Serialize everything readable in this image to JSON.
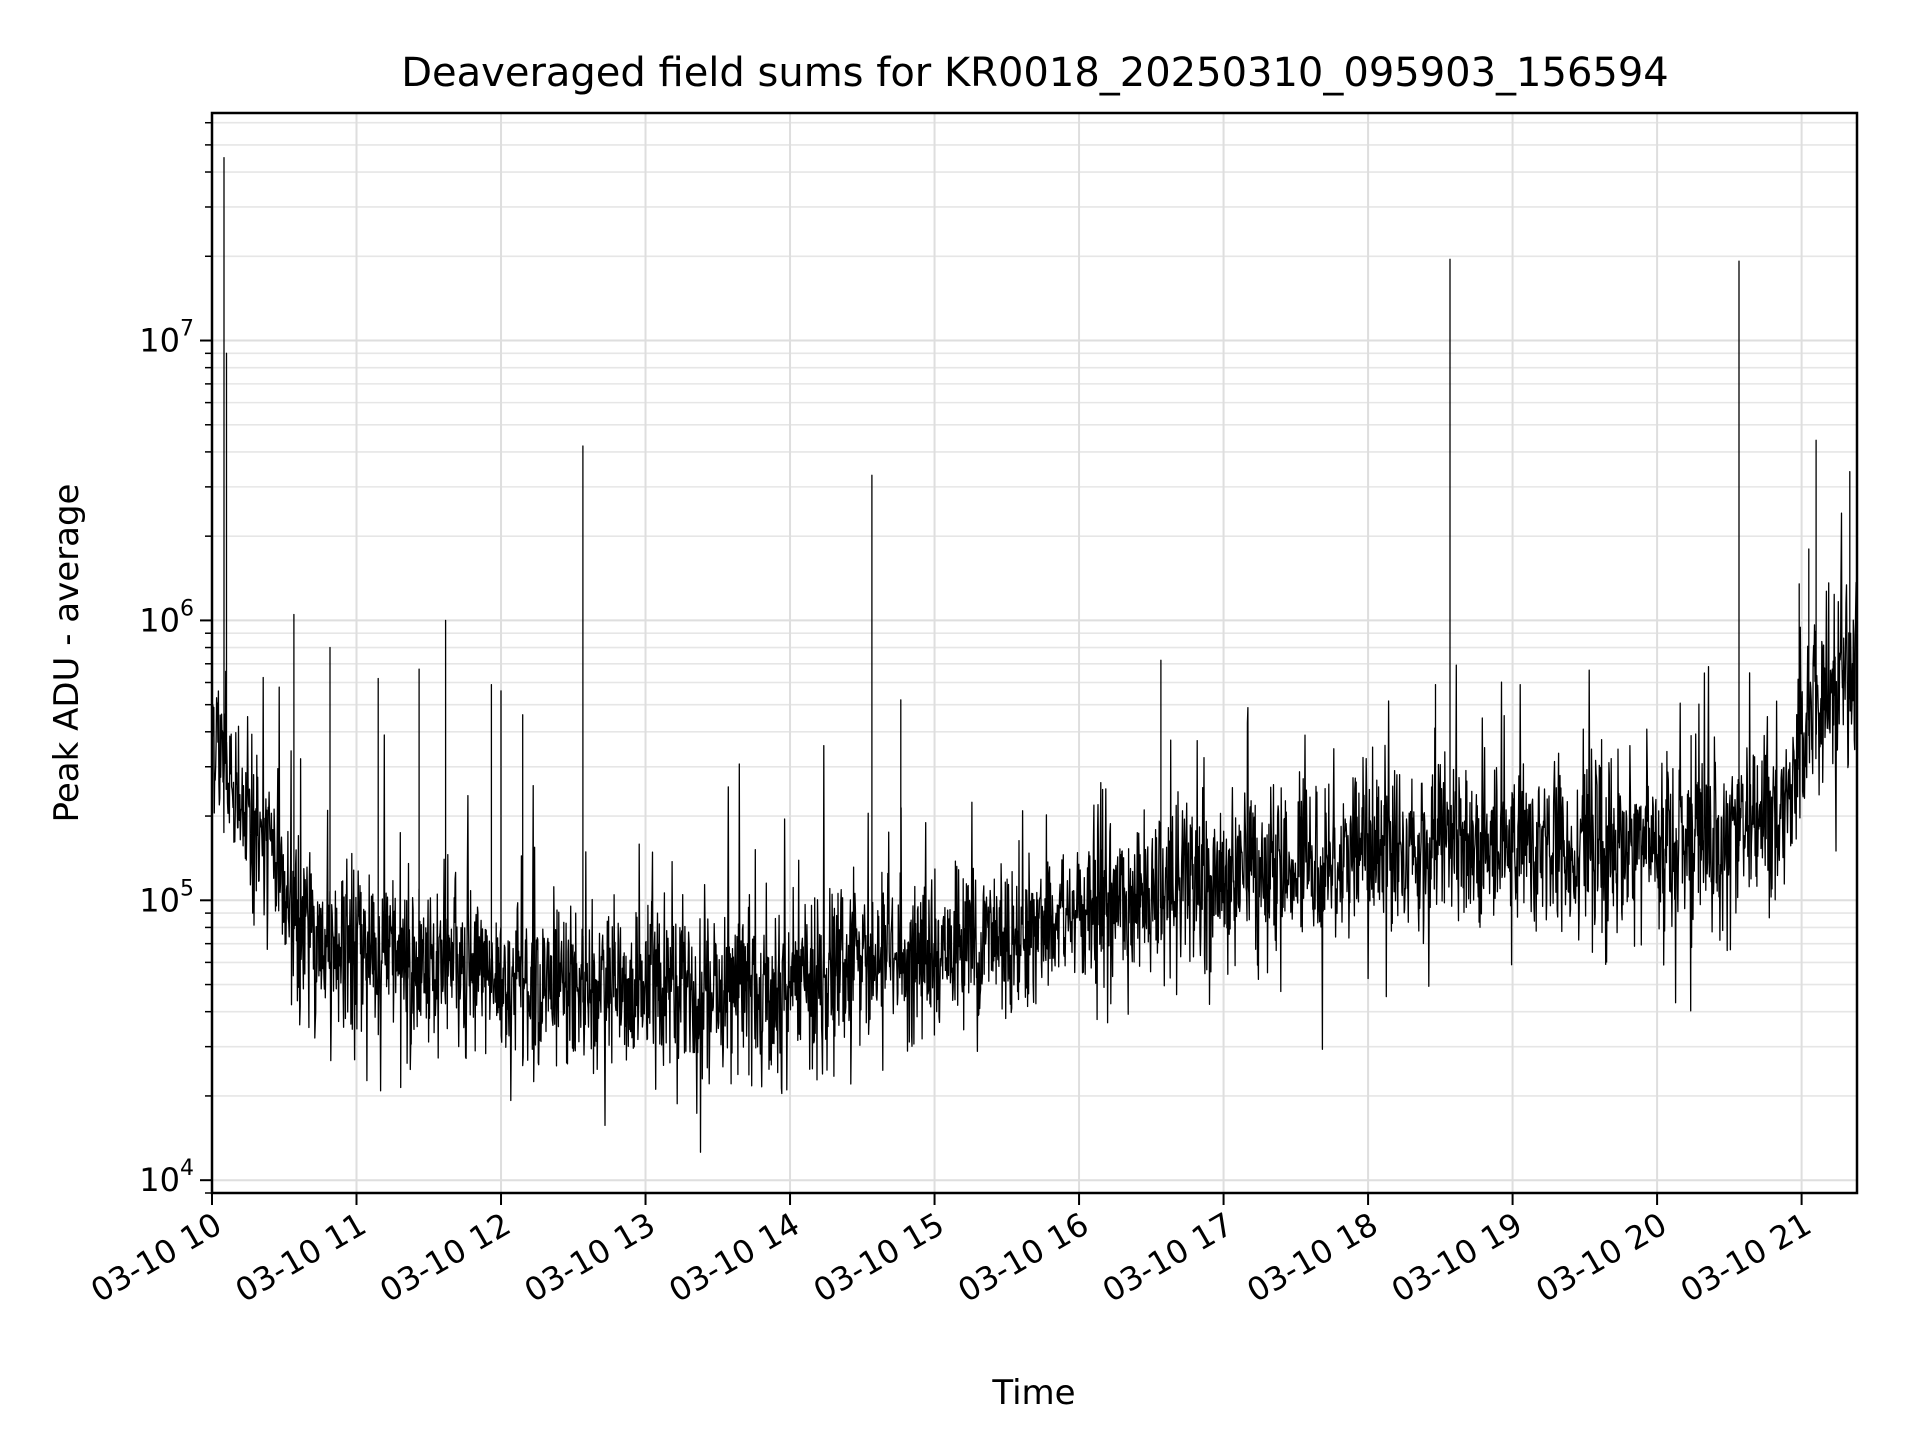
{
  "chart_data": {
    "type": "line",
    "title": "Deaveraged field sums for KR0018_20250310_095903_156594",
    "xlabel": "Time",
    "ylabel": "Peak ADU - average",
    "yscale": "log",
    "xlim": [
      "2025-03-10 10:00",
      "2025-03-10 21:23"
    ],
    "ylim": [
      9000,
      65000000
    ],
    "grid": true,
    "line_color": "#000000",
    "x_ticks": [
      {
        "label": "03-10 10",
        "time": "2025-03-10 10:00"
      },
      {
        "label": "03-10 11",
        "time": "2025-03-10 11:00"
      },
      {
        "label": "03-10 12",
        "time": "2025-03-10 12:00"
      },
      {
        "label": "03-10 13",
        "time": "2025-03-10 13:00"
      },
      {
        "label": "03-10 14",
        "time": "2025-03-10 14:00"
      },
      {
        "label": "03-10 15",
        "time": "2025-03-10 15:00"
      },
      {
        "label": "03-10 16",
        "time": "2025-03-10 16:00"
      },
      {
        "label": "03-10 17",
        "time": "2025-03-10 17:00"
      },
      {
        "label": "03-10 18",
        "time": "2025-03-10 18:00"
      },
      {
        "label": "03-10 19",
        "time": "2025-03-10 19:00"
      },
      {
        "label": "03-10 20",
        "time": "2025-03-10 20:00"
      },
      {
        "label": "03-10 21",
        "time": "2025-03-10 21:00"
      }
    ],
    "y_ticks": [
      {
        "base": "10",
        "exp": "4",
        "value": 10000
      },
      {
        "base": "10",
        "exp": "5",
        "value": 100000
      },
      {
        "base": "10",
        "exp": "6",
        "value": 1000000
      },
      {
        "base": "10",
        "exp": "7",
        "value": 10000000
      }
    ],
    "series": [
      {
        "x": [
          "2025-03-10 10:00",
          "2025-03-10 10:06",
          "2025-03-10 10:15",
          "2025-03-10 10:25",
          "2025-03-10 10:35",
          "2025-03-10 10:45",
          "2025-03-10 11:00",
          "2025-03-10 11:20",
          "2025-03-10 11:40",
          "2025-03-10 12:00",
          "2025-03-10 12:20",
          "2025-03-10 12:40",
          "2025-03-10 13:00",
          "2025-03-10 13:20",
          "2025-03-10 13:40",
          "2025-03-10 14:00",
          "2025-03-10 14:20",
          "2025-03-10 14:40",
          "2025-03-10 15:00",
          "2025-03-10 15:20",
          "2025-03-10 15:40",
          "2025-03-10 16:00",
          "2025-03-10 16:20",
          "2025-03-10 16:40",
          "2025-03-10 17:00",
          "2025-03-10 17:20",
          "2025-03-10 17:40",
          "2025-03-10 18:00",
          "2025-03-10 18:20",
          "2025-03-10 18:40",
          "2025-03-10 19:00",
          "2025-03-10 19:20",
          "2025-03-10 19:40",
          "2025-03-10 20:00",
          "2025-03-10 20:20",
          "2025-03-10 20:40",
          "2025-03-10 20:55",
          "2025-03-10 21:05",
          "2025-03-10 21:15",
          "2025-03-10 21:23"
        ],
        "y": [
          450000,
          280000,
          180000,
          140000,
          90000,
          70000,
          65000,
          60000,
          55000,
          52000,
          50000,
          48000,
          47000,
          46000,
          47000,
          50000,
          55000,
          60000,
          65000,
          72000,
          80000,
          90000,
          100000,
          110000,
          120000,
          130000,
          140000,
          150000,
          155000,
          160000,
          160000,
          160000,
          158000,
          160000,
          165000,
          180000,
          250000,
          500000,
          600000,
          700000
        ]
      }
    ],
    "spikes": [
      {
        "time": "2025-03-10 10:05",
        "value": 45000000
      },
      {
        "time": "2025-03-10 10:06",
        "value": 9000000
      },
      {
        "time": "2025-03-10 10:34",
        "value": 1050000
      },
      {
        "time": "2025-03-10 10:49",
        "value": 800000
      },
      {
        "time": "2025-03-10 11:09",
        "value": 620000
      },
      {
        "time": "2025-03-10 11:26",
        "value": 670000
      },
      {
        "time": "2025-03-10 11:37",
        "value": 1000000
      },
      {
        "time": "2025-03-10 11:56",
        "value": 590000
      },
      {
        "time": "2025-03-10 12:00",
        "value": 560000
      },
      {
        "time": "2025-03-10 12:09",
        "value": 460000
      },
      {
        "time": "2025-03-10 12:34",
        "value": 4200000
      },
      {
        "time": "2025-03-10 14:34",
        "value": 3300000
      },
      {
        "time": "2025-03-10 14:46",
        "value": 520000
      },
      {
        "time": "2025-03-10 16:34",
        "value": 720000
      },
      {
        "time": "2025-03-10 18:34",
        "value": 19500000
      },
      {
        "time": "2025-03-10 18:28",
        "value": 590000
      },
      {
        "time": "2025-03-10 20:34",
        "value": 19200000
      },
      {
        "time": "2025-03-10 21:06",
        "value": 4400000
      },
      {
        "time": "2025-03-10 21:03",
        "value": 1800000
      },
      {
        "time": "2025-03-10 21:20",
        "value": 3400000
      },
      {
        "time": "2025-03-10 20:59",
        "value": 1350000
      }
    ]
  }
}
